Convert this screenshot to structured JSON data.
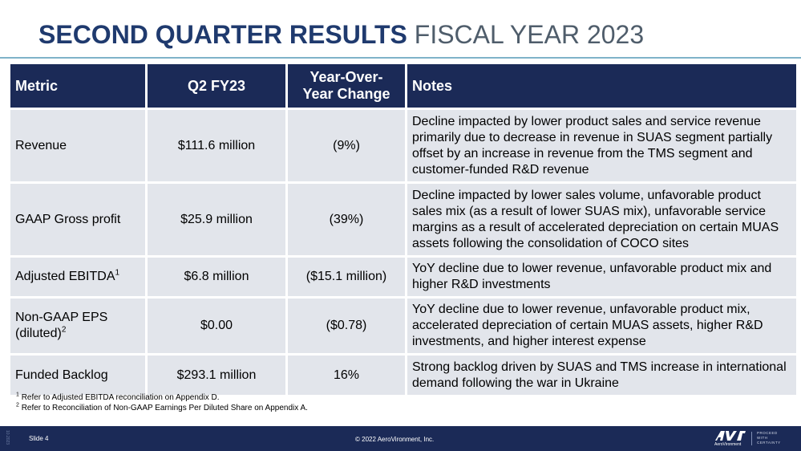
{
  "title": {
    "bold": "SECOND QUARTER RESULTS",
    "light": "FISCAL YEAR 2023"
  },
  "table": {
    "headers": {
      "metric": "Metric",
      "q2": "Q2 FY23",
      "yoy_line1": "Year-Over-",
      "yoy_line2": "Year Change",
      "notes": "Notes"
    },
    "rows": [
      {
        "metric": "Revenue",
        "value": "$111.6 million",
        "change": "(9%)",
        "notes": "Decline impacted by lower product sales and service revenue primarily due to decrease in revenue in SUAS segment partially offset by an increase in revenue from the TMS segment and customer-funded R&D revenue"
      },
      {
        "metric": "GAAP Gross profit",
        "value": "$25.9 million",
        "change": "(39%)",
        "notes": "Decline impacted by lower sales volume, unfavorable product sales mix (as a result of lower SUAS mix), unfavorable service margins as a result of accelerated depreciation on certain MUAS assets following the consolidation of COCO sites"
      },
      {
        "metric": "Adjusted EBITDA",
        "metric_sup": "1",
        "value": "$6.8 million",
        "change": "($15.1 million)",
        "notes": "YoY decline due to lower revenue, unfavorable product mix and higher R&D investments"
      },
      {
        "metric_line1": "Non-GAAP EPS",
        "metric_line2": "(diluted)",
        "metric_sup": "2",
        "value": "$0.00",
        "change": "($0.78)",
        "notes": "YoY decline due to lower revenue, unfavorable product mix, accelerated depreciation of certain MUAS assets, higher R&D investments, and higher interest expense"
      },
      {
        "metric": "Funded Backlog",
        "value": "$293.1 million",
        "change": "16%",
        "notes": "Strong backlog driven by SUAS and TMS increase in international demand following the war in Ukraine"
      }
    ]
  },
  "footnotes": [
    {
      "sup": "1",
      "text": "Refer to Adjusted EBITDA reconciliation on Appendix D."
    },
    {
      "sup": "2",
      "text": "Refer to Reconciliation of Non-GAAP Earnings Per Diluted Share on Appendix A."
    }
  ],
  "footer": {
    "side_code": "10.2023",
    "slide": "Slide 4",
    "copyright": "© 2022 AeroVironment, Inc.",
    "brand": "AeroVironment",
    "tagline": [
      "PROCEED",
      "WITH",
      "CERTAINTY"
    ]
  },
  "colors": {
    "header_bg": "#1b2a57",
    "cell_bg": "#e2e5eb",
    "title_bold": "#1f3a6e",
    "title_light": "#4f5d6b",
    "rule": "#7fb3c9"
  }
}
